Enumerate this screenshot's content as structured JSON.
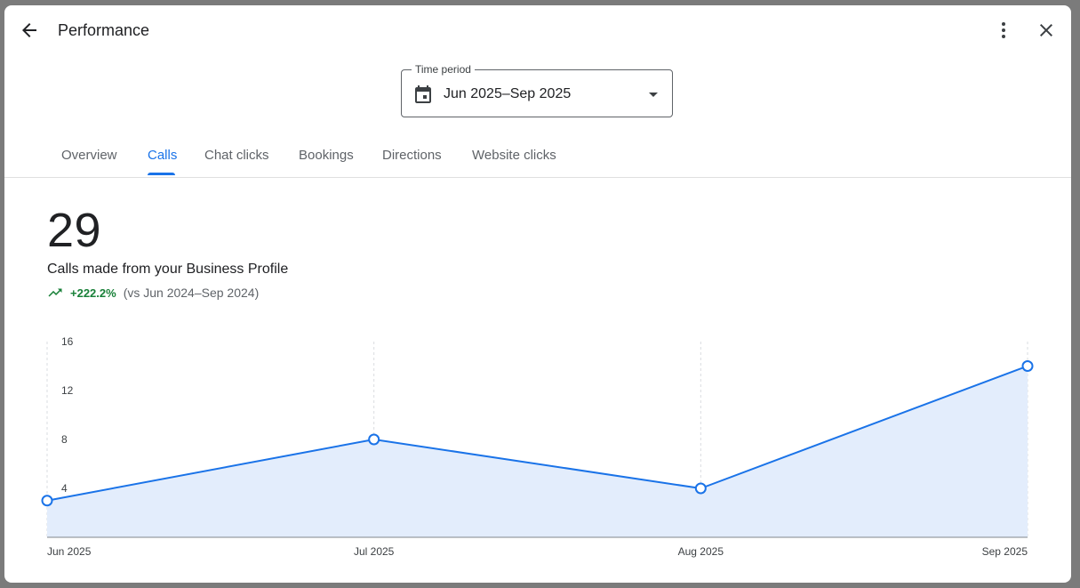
{
  "header": {
    "title": "Performance"
  },
  "time_period": {
    "label": "Time period",
    "value": "Jun 2025–Sep 2025"
  },
  "tabs": [
    {
      "label": "Overview",
      "active": false
    },
    {
      "label": "Calls",
      "active": true
    },
    {
      "label": "Chat clicks",
      "active": false
    },
    {
      "label": "Bookings",
      "active": false
    },
    {
      "label": "Directions",
      "active": false
    },
    {
      "label": "Website clicks",
      "active": false
    }
  ],
  "summary": {
    "total": "29",
    "description": "Calls made from your Business Profile",
    "change": "+222.2%",
    "comparison": "(vs Jun 2024–Sep 2024)"
  },
  "colors": {
    "accent": "#1a73e8",
    "area_fill": "#e3edfc",
    "trend_up": "#188038"
  },
  "chart_data": {
    "type": "area",
    "categories": [
      "Jun 2025",
      "Jul 2025",
      "Aug 2025",
      "Sep 2025"
    ],
    "values": [
      3,
      8,
      4,
      14
    ],
    "ylim": [
      0,
      16
    ],
    "yticks": [
      4,
      8,
      12,
      16
    ],
    "grid": "vertical dashed",
    "legend": "none"
  }
}
